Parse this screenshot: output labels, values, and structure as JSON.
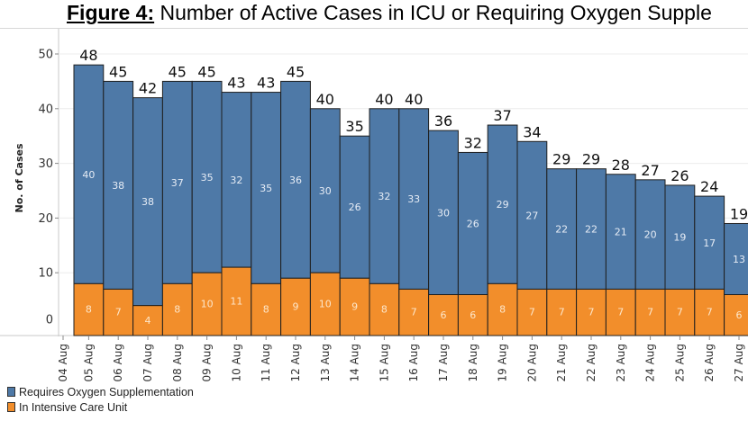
{
  "title": {
    "figure_label": "Figure 4:",
    "text": " Number of Active Cases in ICU or Requiring Oxygen Supple"
  },
  "colors": {
    "oxygen": "#4e79a7",
    "icu": "#f28e2b",
    "bar_outline": "#1f1f1f",
    "grid": "#ececec",
    "axis": "#c8c8c8",
    "oxygen_label": "#e6ecf5",
    "icu_label": "#fde6c9"
  },
  "legend": [
    {
      "label": "Requires Oxygen Supplementation",
      "color": "#4e79a7"
    },
    {
      "label": "In Intensive Care Unit",
      "color": "#f28e2b"
    }
  ],
  "chart_data": {
    "type": "bar",
    "stacked": true,
    "title": "Figure 4: Number of Active Cases in ICU or Requiring Oxygen Supple",
    "xlabel": "",
    "ylabel": "No. of Cases",
    "ylim": [
      0,
      53
    ],
    "yticks": [
      0,
      10,
      20,
      30,
      40,
      50
    ],
    "grid": true,
    "legend_position": "bottom-left",
    "x_tick_labels": [
      "04 Aug",
      "05 Aug",
      "06 Aug",
      "07 Aug",
      "08 Aug",
      "09 Aug",
      "10 Aug",
      "11 Aug",
      "12 Aug",
      "13 Aug",
      "14 Aug",
      "15 Aug",
      "16 Aug",
      "17 Aug",
      "18 Aug",
      "19 Aug",
      "20 Aug",
      "21 Aug",
      "22 Aug",
      "23 Aug",
      "24 Aug",
      "25 Aug",
      "26 Aug",
      "27 Aug"
    ],
    "categories": [
      "05 Aug",
      "06 Aug",
      "07 Aug",
      "08 Aug",
      "09 Aug",
      "10 Aug",
      "11 Aug",
      "12 Aug",
      "13 Aug",
      "14 Aug",
      "15 Aug",
      "16 Aug",
      "17 Aug",
      "18 Aug",
      "19 Aug",
      "20 Aug",
      "21 Aug",
      "22 Aug",
      "23 Aug",
      "24 Aug",
      "25 Aug",
      "26 Aug",
      "27 Aug"
    ],
    "series": [
      {
        "name": "In Intensive Care Unit",
        "values": [
          8,
          7,
          4,
          8,
          10,
          11,
          8,
          9,
          10,
          9,
          8,
          7,
          6,
          6,
          8,
          7,
          7,
          7,
          7,
          7,
          7,
          7,
          6
        ]
      },
      {
        "name": "Requires Oxygen Supplementation",
        "values": [
          40,
          38,
          38,
          37,
          35,
          32,
          35,
          36,
          30,
          26,
          32,
          33,
          30,
          26,
          29,
          27,
          22,
          22,
          21,
          20,
          19,
          17,
          13
        ]
      }
    ],
    "totals": [
      48,
      45,
      42,
      45,
      45,
      43,
      43,
      45,
      40,
      35,
      40,
      40,
      36,
      32,
      37,
      34,
      29,
      29,
      28,
      27,
      26,
      24,
      19
    ]
  }
}
